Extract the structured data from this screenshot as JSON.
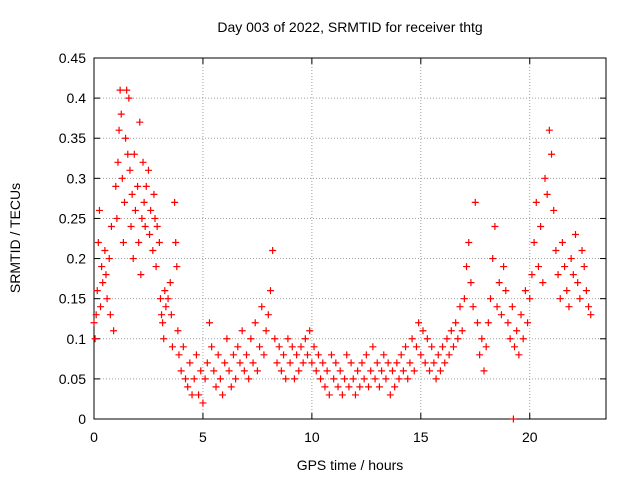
{
  "chart_data": {
    "type": "scatter",
    "title": "Day 003 of 2022, SRMTID for receiver thtg",
    "xlabel": "GPS time / hours",
    "ylabel": "SRMTID / TECUs",
    "xlim": [
      0,
      23.5
    ],
    "ylim": [
      0,
      0.45
    ],
    "xticks": [
      0,
      5,
      10,
      15,
      20
    ],
    "yticks": [
      0,
      0.05,
      0.1,
      0.15,
      0.2,
      0.25,
      0.3,
      0.35,
      0.4,
      0.45
    ],
    "grid": true,
    "marker": "plus",
    "series_color": "#ff0000",
    "points": [
      [
        0.0,
        0.12
      ],
      [
        0.05,
        0.1
      ],
      [
        0.1,
        0.13
      ],
      [
        0.15,
        0.16
      ],
      [
        0.2,
        0.22
      ],
      [
        0.25,
        0.26
      ],
      [
        0.3,
        0.14
      ],
      [
        0.35,
        0.19
      ],
      [
        0.4,
        0.17
      ],
      [
        0.5,
        0.21
      ],
      [
        0.55,
        0.18
      ],
      [
        0.6,
        0.15
      ],
      [
        0.7,
        0.2
      ],
      [
        0.75,
        0.13
      ],
      [
        0.8,
        0.24
      ],
      [
        0.9,
        0.11
      ],
      [
        1.0,
        0.29
      ],
      [
        1.05,
        0.25
      ],
      [
        1.1,
        0.32
      ],
      [
        1.15,
        0.36
      ],
      [
        1.2,
        0.41
      ],
      [
        1.25,
        0.38
      ],
      [
        1.3,
        0.3
      ],
      [
        1.35,
        0.22
      ],
      [
        1.4,
        0.27
      ],
      [
        1.45,
        0.35
      ],
      [
        1.5,
        0.41
      ],
      [
        1.55,
        0.33
      ],
      [
        1.6,
        0.4
      ],
      [
        1.65,
        0.31
      ],
      [
        1.7,
        0.24
      ],
      [
        1.75,
        0.28
      ],
      [
        1.8,
        0.2
      ],
      [
        1.85,
        0.33
      ],
      [
        1.9,
        0.26
      ],
      [
        2.0,
        0.29
      ],
      [
        2.05,
        0.22
      ],
      [
        2.1,
        0.37
      ],
      [
        2.15,
        0.18
      ],
      [
        2.2,
        0.25
      ],
      [
        2.25,
        0.32
      ],
      [
        2.3,
        0.27
      ],
      [
        2.35,
        0.24
      ],
      [
        2.4,
        0.29
      ],
      [
        2.5,
        0.31
      ],
      [
        2.55,
        0.23
      ],
      [
        2.6,
        0.26
      ],
      [
        2.7,
        0.21
      ],
      [
        2.75,
        0.28
      ],
      [
        2.8,
        0.25
      ],
      [
        2.85,
        0.19
      ],
      [
        2.9,
        0.24
      ],
      [
        3.0,
        0.22
      ],
      [
        3.05,
        0.15
      ],
      [
        3.1,
        0.13
      ],
      [
        3.15,
        0.12
      ],
      [
        3.2,
        0.1
      ],
      [
        3.25,
        0.16
      ],
      [
        3.3,
        0.14
      ],
      [
        3.4,
        0.15
      ],
      [
        3.5,
        0.17
      ],
      [
        3.55,
        0.13
      ],
      [
        3.6,
        0.09
      ],
      [
        3.7,
        0.27
      ],
      [
        3.75,
        0.22
      ],
      [
        3.8,
        0.19
      ],
      [
        3.85,
        0.11
      ],
      [
        3.9,
        0.08
      ],
      [
        4.0,
        0.06
      ],
      [
        4.1,
        0.09
      ],
      [
        4.2,
        0.05
      ],
      [
        4.3,
        0.04
      ],
      [
        4.4,
        0.07
      ],
      [
        4.5,
        0.03
      ],
      [
        4.6,
        0.05
      ],
      [
        4.7,
        0.08
      ],
      [
        4.8,
        0.03
      ],
      [
        4.9,
        0.06
      ],
      [
        5.0,
        0.02
      ],
      [
        5.1,
        0.05
      ],
      [
        5.2,
        0.07
      ],
      [
        5.3,
        0.12
      ],
      [
        5.4,
        0.09
      ],
      [
        5.5,
        0.06
      ],
      [
        5.6,
        0.04
      ],
      [
        5.7,
        0.08
      ],
      [
        5.8,
        0.05
      ],
      [
        5.9,
        0.03
      ],
      [
        6.0,
        0.07
      ],
      [
        6.1,
        0.1
      ],
      [
        6.2,
        0.06
      ],
      [
        6.3,
        0.04
      ],
      [
        6.4,
        0.08
      ],
      [
        6.5,
        0.05
      ],
      [
        6.6,
        0.09
      ],
      [
        6.7,
        0.07
      ],
      [
        6.8,
        0.11
      ],
      [
        6.9,
        0.06
      ],
      [
        7.0,
        0.08
      ],
      [
        7.1,
        0.05
      ],
      [
        7.2,
        0.1
      ],
      [
        7.3,
        0.07
      ],
      [
        7.4,
        0.12
      ],
      [
        7.5,
        0.06
      ],
      [
        7.6,
        0.09
      ],
      [
        7.7,
        0.14
      ],
      [
        7.8,
        0.08
      ],
      [
        7.9,
        0.11
      ],
      [
        8.0,
        0.13
      ],
      [
        8.1,
        0.16
      ],
      [
        8.2,
        0.21
      ],
      [
        8.3,
        0.1
      ],
      [
        8.4,
        0.07
      ],
      [
        8.5,
        0.09
      ],
      [
        8.6,
        0.06
      ],
      [
        8.7,
        0.08
      ],
      [
        8.8,
        0.05
      ],
      [
        8.9,
        0.1
      ],
      [
        9.0,
        0.07
      ],
      [
        9.1,
        0.09
      ],
      [
        9.2,
        0.05
      ],
      [
        9.3,
        0.08
      ],
      [
        9.4,
        0.06
      ],
      [
        9.5,
        0.09
      ],
      [
        9.6,
        0.07
      ],
      [
        9.7,
        0.1
      ],
      [
        9.8,
        0.08
      ],
      [
        9.9,
        0.11
      ],
      [
        10.0,
        0.07
      ],
      [
        10.1,
        0.09
      ],
      [
        10.2,
        0.06
      ],
      [
        10.3,
        0.08
      ],
      [
        10.4,
        0.05
      ],
      [
        10.5,
        0.07
      ],
      [
        10.6,
        0.04
      ],
      [
        10.7,
        0.06
      ],
      [
        10.8,
        0.03
      ],
      [
        10.9,
        0.08
      ],
      [
        11.0,
        0.05
      ],
      [
        11.1,
        0.07
      ],
      [
        11.2,
        0.04
      ],
      [
        11.3,
        0.06
      ],
      [
        11.4,
        0.03
      ],
      [
        11.5,
        0.05
      ],
      [
        11.6,
        0.08
      ],
      [
        11.7,
        0.04
      ],
      [
        11.8,
        0.07
      ],
      [
        11.9,
        0.05
      ],
      [
        12.0,
        0.03
      ],
      [
        12.1,
        0.06
      ],
      [
        12.2,
        0.04
      ],
      [
        12.3,
        0.07
      ],
      [
        12.4,
        0.05
      ],
      [
        12.5,
        0.08
      ],
      [
        12.6,
        0.04
      ],
      [
        12.7,
        0.06
      ],
      [
        12.8,
        0.09
      ],
      [
        12.9,
        0.05
      ],
      [
        13.0,
        0.07
      ],
      [
        13.1,
        0.04
      ],
      [
        13.2,
        0.06
      ],
      [
        13.3,
        0.08
      ],
      [
        13.4,
        0.05
      ],
      [
        13.5,
        0.07
      ],
      [
        13.6,
        0.03
      ],
      [
        13.7,
        0.06
      ],
      [
        13.8,
        0.04
      ],
      [
        13.9,
        0.07
      ],
      [
        14.0,
        0.05
      ],
      [
        14.1,
        0.08
      ],
      [
        14.2,
        0.06
      ],
      [
        14.3,
        0.09
      ],
      [
        14.4,
        0.05
      ],
      [
        14.5,
        0.07
      ],
      [
        14.6,
        0.1
      ],
      [
        14.7,
        0.06
      ],
      [
        14.8,
        0.09
      ],
      [
        14.9,
        0.12
      ],
      [
        15.0,
        0.08
      ],
      [
        15.1,
        0.11
      ],
      [
        15.2,
        0.07
      ],
      [
        15.3,
        0.1
      ],
      [
        15.4,
        0.06
      ],
      [
        15.5,
        0.09
      ],
      [
        15.6,
        0.07
      ],
      [
        15.7,
        0.05
      ],
      [
        15.8,
        0.08
      ],
      [
        15.9,
        0.06
      ],
      [
        16.0,
        0.09
      ],
      [
        16.1,
        0.07
      ],
      [
        16.2,
        0.1
      ],
      [
        16.3,
        0.08
      ],
      [
        16.4,
        0.11
      ],
      [
        16.5,
        0.09
      ],
      [
        16.6,
        0.12
      ],
      [
        16.7,
        0.1
      ],
      [
        16.8,
        0.14
      ],
      [
        16.9,
        0.11
      ],
      [
        17.0,
        0.15
      ],
      [
        17.1,
        0.19
      ],
      [
        17.2,
        0.22
      ],
      [
        17.3,
        0.17
      ],
      [
        17.4,
        0.14
      ],
      [
        17.5,
        0.27
      ],
      [
        17.6,
        0.12
      ],
      [
        17.7,
        0.08
      ],
      [
        17.8,
        0.1
      ],
      [
        17.9,
        0.06
      ],
      [
        18.0,
        0.09
      ],
      [
        18.1,
        0.12
      ],
      [
        18.2,
        0.15
      ],
      [
        18.3,
        0.2
      ],
      [
        18.4,
        0.24
      ],
      [
        18.5,
        0.14
      ],
      [
        18.6,
        0.17
      ],
      [
        18.7,
        0.13
      ],
      [
        18.8,
        0.19
      ],
      [
        18.9,
        0.16
      ],
      [
        19.0,
        0.12
      ],
      [
        19.1,
        0.1
      ],
      [
        19.2,
        0.14
      ],
      [
        19.3,
        0.09
      ],
      [
        19.4,
        0.11
      ],
      [
        19.5,
        0.08
      ],
      [
        19.6,
        0.13
      ],
      [
        19.7,
        0.1
      ],
      [
        19.8,
        0.16
      ],
      [
        19.9,
        0.12
      ],
      [
        20.0,
        0.15
      ],
      [
        20.1,
        0.18
      ],
      [
        20.2,
        0.22
      ],
      [
        20.3,
        0.27
      ],
      [
        20.4,
        0.19
      ],
      [
        20.5,
        0.24
      ],
      [
        20.6,
        0.17
      ],
      [
        20.7,
        0.3
      ],
      [
        20.8,
        0.28
      ],
      [
        20.9,
        0.36
      ],
      [
        21.0,
        0.33
      ],
      [
        21.1,
        0.26
      ],
      [
        21.2,
        0.21
      ],
      [
        21.3,
        0.18
      ],
      [
        21.4,
        0.15
      ],
      [
        21.5,
        0.22
      ],
      [
        21.6,
        0.19
      ],
      [
        21.7,
        0.16
      ],
      [
        21.8,
        0.14
      ],
      [
        21.9,
        0.2
      ],
      [
        22.0,
        0.18
      ],
      [
        22.1,
        0.23
      ],
      [
        22.2,
        0.17
      ],
      [
        22.3,
        0.15
      ],
      [
        22.4,
        0.21
      ],
      [
        22.5,
        0.19
      ],
      [
        22.6,
        0.16
      ],
      [
        22.7,
        0.14
      ],
      [
        22.8,
        0.13
      ],
      [
        19.25,
        0.0
      ]
    ]
  }
}
